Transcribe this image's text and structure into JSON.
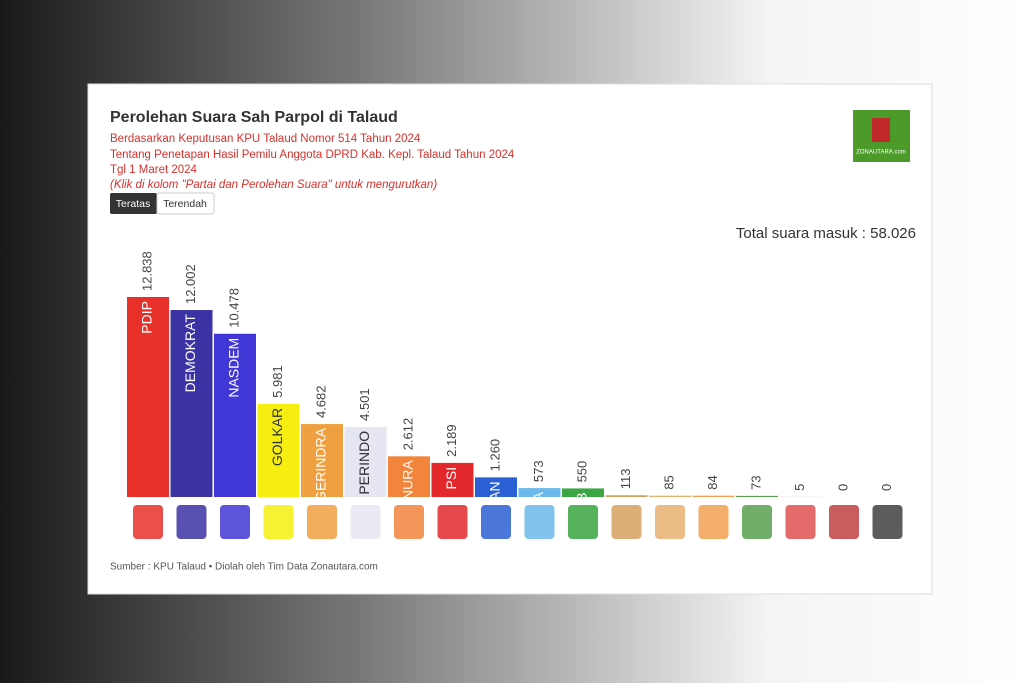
{
  "header": {
    "title": "Perolehan Suara Sah Parpol di Talaud",
    "subtitle_lines": [
      "Berdasarkan Keputusan KPU Talaud Nomor 514 Tahun 2024",
      "Tentang Penetapan Hasil Pemilu Anggota DPRD Kab. Kepl. Talaud Tahun 2024",
      "Tgl 1 Maret 2024"
    ],
    "hint": "(Klik di kolom \"Partai dan Perolehan Suara\" untuk mengurutkan)",
    "buttons": [
      "Teratas",
      "Terendah"
    ],
    "logo_text": "ZONAUTARA.com"
  },
  "chart_data": {
    "type": "bar",
    "annotation": "Total suara masuk : 58.026",
    "categories": [
      "PDIP",
      "DEMOKRAT",
      "NASDEM",
      "GOLKAR",
      "GERINDRA",
      "PERINDO",
      "NURA",
      "PSI",
      "AN",
      "A",
      "B",
      null,
      null,
      null,
      null,
      null,
      null,
      null
    ],
    "values": [
      12838,
      12002,
      10478,
      5981,
      4682,
      4501,
      2612,
      2189,
      1260,
      573,
      550,
      113,
      85,
      84,
      73,
      5,
      0,
      0
    ],
    "value_labels": [
      "12.838",
      "12.002",
      "10.478",
      "5.981",
      "4.682",
      "4.501",
      "2.612",
      "2.189",
      "1.260",
      "573",
      "550",
      "113",
      "85",
      "84",
      "73",
      "5",
      "0",
      "0"
    ],
    "colors": [
      "#e8302a",
      "#3b33a3",
      "#4037d6",
      "#f6ee10",
      "#f0a040",
      "#e6e6f2",
      "#f2843c",
      "#e3282c",
      "#2b5fd4",
      "#6cb8ea",
      "#3aa542",
      "#d8a060",
      "#e8b070",
      "#f0a050",
      "#58a050",
      "#e05050",
      "#c04040",
      "#404040"
    ]
  },
  "footer": {
    "source": "Sumber : KPU Talaud • Diolah oleh Tim Data Zonautara.com"
  }
}
